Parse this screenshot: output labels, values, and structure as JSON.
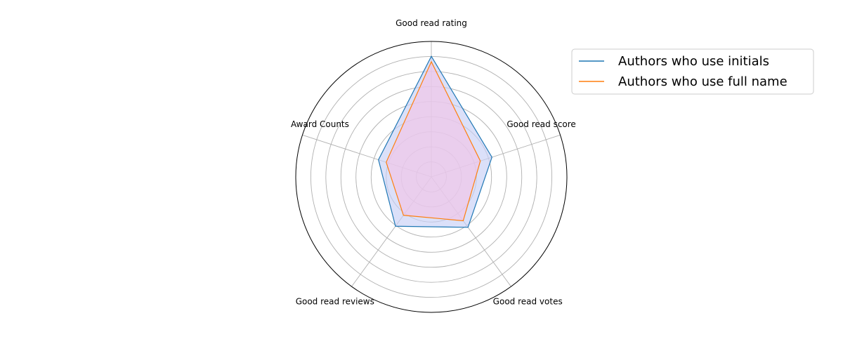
{
  "chart_data": {
    "type": "radar",
    "title": "",
    "categories": [
      "Good read rating",
      "Good read score",
      "Good read votes",
      "Good read reviews",
      "Award Counts"
    ],
    "r_range": [
      0,
      1
    ],
    "r_ticks": [
      0.111,
      0.222,
      0.333,
      0.444,
      0.556,
      0.667,
      0.778,
      0.889
    ],
    "grid": true,
    "legend_position": "upper-right outside",
    "series": [
      {
        "name": "Authors who use initials",
        "color": "#1f77b4",
        "fill": "#c8cff6",
        "values": [
          0.89,
          0.47,
          0.46,
          0.45,
          0.41
        ]
      },
      {
        "name": "Authors who use full name",
        "color": "#ff7f0e",
        "fill": "#f2c4e6",
        "values": [
          0.85,
          0.38,
          0.4,
          0.35,
          0.35
        ]
      }
    ]
  }
}
